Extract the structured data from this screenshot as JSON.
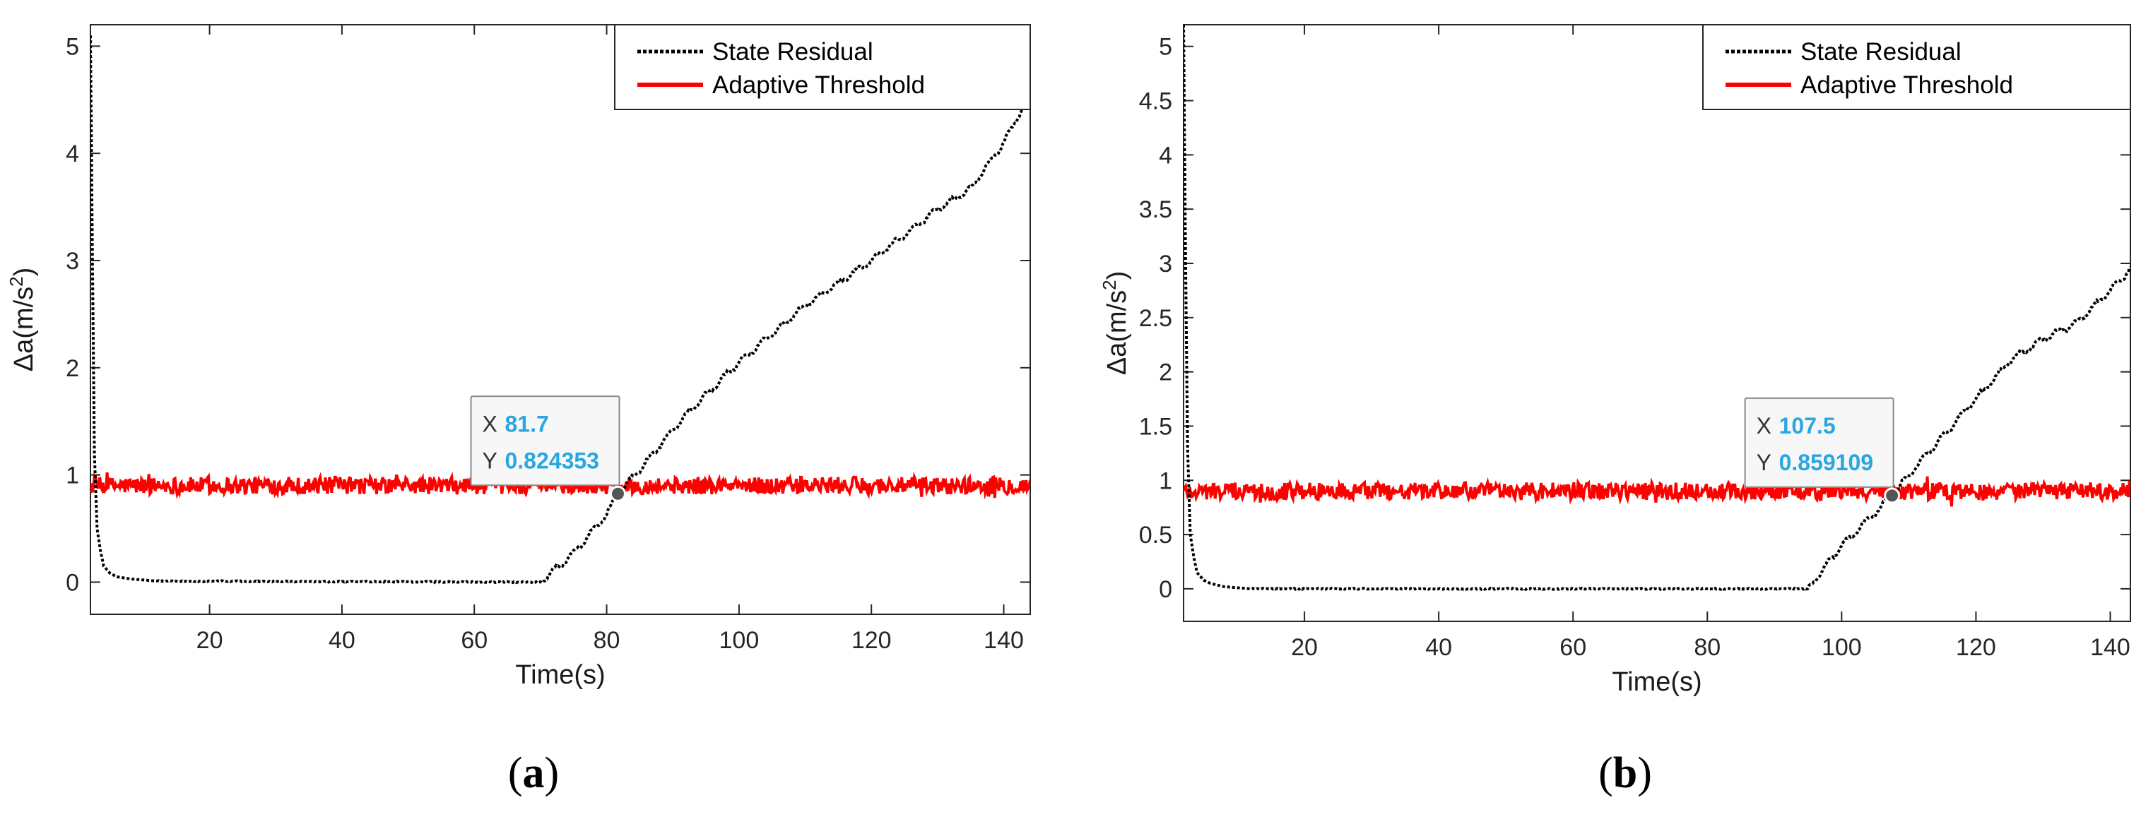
{
  "chart_data": [
    {
      "type": "line",
      "panel": "a",
      "caption_letter": "a",
      "title": "",
      "xlabel": "Time(s)",
      "ylabel": "Δa(m/s²)",
      "ylabel_main": "Δa(m/s",
      "ylabel_sup": "2",
      "ylabel_end": ")",
      "xlim": [
        2,
        144
      ],
      "ylim": [
        -0.3,
        5.2
      ],
      "xticks": [
        20,
        40,
        60,
        80,
        100,
        120,
        140
      ],
      "yticks": [
        0,
        1,
        2,
        3,
        4,
        5
      ],
      "ytick_labels": [
        "0",
        "1",
        "2",
        "3",
        "4",
        "5"
      ],
      "legend_position": "top-right",
      "series": [
        {
          "name": "State Residual",
          "color": "#000000",
          "style": "dotted",
          "points": [
            [
              2,
              5.1
            ],
            [
              2.3,
              3.0
            ],
            [
              2.6,
              1.2
            ],
            [
              3,
              0.5
            ],
            [
              3.5,
              0.3
            ],
            [
              4,
              0.15
            ],
            [
              5,
              0.08
            ],
            [
              6,
              0.05
            ],
            [
              8,
              0.03
            ],
            [
              12,
              0.01
            ],
            [
              69.5,
              0.0
            ],
            [
              70,
              0.0
            ],
            [
              75,
              0.27
            ],
            [
              80,
              0.63
            ],
            [
              81.7,
              0.824353
            ],
            [
              85,
              1.05
            ],
            [
              90,
              1.42
            ],
            [
              95,
              1.75
            ],
            [
              100,
              2.05
            ],
            [
              110,
              2.58
            ],
            [
              120,
              3.0
            ],
            [
              130,
              3.48
            ],
            [
              135,
              3.67
            ],
            [
              140,
              4.1
            ],
            [
              144,
              4.55
            ]
          ]
        },
        {
          "name": "Adaptive Threshold",
          "color": "#ff0000",
          "style": "solid",
          "noise": "random fluctuation around mean",
          "mean": 0.9,
          "amplitude": 0.08,
          "x_range": [
            2,
            144
          ]
        }
      ],
      "data_tip": {
        "x_key": "X",
        "x_value": "81.7",
        "y_key": "Y",
        "y_value": "0.824353",
        "x": 81.7,
        "y": 0.824353
      }
    },
    {
      "type": "line",
      "panel": "b",
      "caption_letter": "b",
      "title": "",
      "xlabel": "Time(s)",
      "ylabel": "Δa(m/s²)",
      "ylabel_main": "Δa(m/s",
      "ylabel_sup": "2",
      "ylabel_end": ")",
      "xlim": [
        2,
        143
      ],
      "ylim": [
        -0.3,
        5.2
      ],
      "xticks": [
        20,
        40,
        60,
        80,
        100,
        120,
        140
      ],
      "yticks": [
        0,
        0.5,
        1,
        1.5,
        2,
        2.5,
        3,
        3.5,
        4,
        4.5,
        5
      ],
      "ytick_labels": [
        "0",
        "0.5",
        "1",
        "1.5",
        "2",
        "2.5",
        "3",
        "3.5",
        "4",
        "4.5",
        "5"
      ],
      "legend_position": "top-right",
      "series": [
        {
          "name": "State Residual",
          "color": "#000000",
          "style": "dotted",
          "points": [
            [
              2,
              5.2
            ],
            [
              2.3,
              3.0
            ],
            [
              2.6,
              1.3
            ],
            [
              3,
              0.5
            ],
            [
              3.5,
              0.3
            ],
            [
              4,
              0.15
            ],
            [
              5,
              0.08
            ],
            [
              6,
              0.05
            ],
            [
              8,
              0.02
            ],
            [
              12,
              0.0
            ],
            [
              94.5,
              0.0
            ],
            [
              95,
              0.0
            ],
            [
              100,
              0.4
            ],
            [
              105,
              0.7
            ],
            [
              107.5,
              0.859109
            ],
            [
              110,
              1.05
            ],
            [
              115,
              1.4
            ],
            [
              120,
              1.75
            ],
            [
              125,
              2.1
            ],
            [
              130,
              2.3
            ],
            [
              135,
              2.45
            ],
            [
              140,
              2.75
            ],
            [
              143,
              2.95
            ]
          ]
        },
        {
          "name": "Adaptive Threshold",
          "color": "#ff0000",
          "style": "solid",
          "noise": "random fluctuation around mean",
          "mean": 0.9,
          "amplitude": 0.08,
          "x_range": [
            2,
            143
          ]
        }
      ],
      "data_tip": {
        "x_key": "X",
        "x_value": "107.5",
        "y_key": "Y",
        "y_value": "0.859109",
        "x": 107.5,
        "y": 0.859109
      }
    }
  ]
}
